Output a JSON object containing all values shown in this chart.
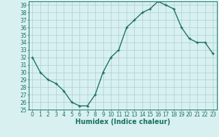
{
  "x": [
    0,
    1,
    2,
    3,
    4,
    5,
    6,
    7,
    8,
    9,
    10,
    11,
    12,
    13,
    14,
    15,
    16,
    17,
    18,
    19,
    20,
    21,
    22,
    23
  ],
  "y": [
    32,
    30,
    29,
    28.5,
    27.5,
    26,
    25.5,
    25.5,
    27,
    30,
    32,
    33,
    36,
    37,
    38,
    38.5,
    39.5,
    39,
    38.5,
    36,
    34.5,
    34,
    34,
    32.5
  ],
  "line_color": "#1a7060",
  "marker_color": "#1a7060",
  "bg_color": "#d8f0f0",
  "grid_color": "#a8cece",
  "xlabel": "Humidex (Indice chaleur)",
  "xlim": [
    -0.5,
    23.5
  ],
  "ylim": [
    25,
    39.5
  ],
  "yticks": [
    25,
    26,
    27,
    28,
    29,
    30,
    31,
    32,
    33,
    34,
    35,
    36,
    37,
    38,
    39
  ],
  "xticks": [
    0,
    1,
    2,
    3,
    4,
    5,
    6,
    7,
    8,
    9,
    10,
    11,
    12,
    13,
    14,
    15,
    16,
    17,
    18,
    19,
    20,
    21,
    22,
    23
  ],
  "tick_fontsize": 5.5,
  "xlabel_fontsize": 7.0,
  "linewidth": 1.0,
  "markersize": 3.0,
  "markeredgewidth": 0.9
}
